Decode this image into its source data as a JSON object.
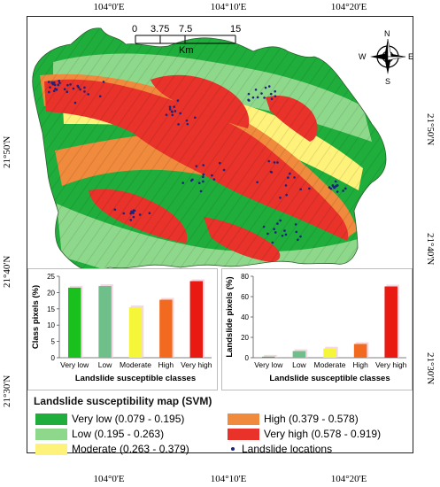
{
  "map": {
    "lon_labels": [
      "104°0'E",
      "104°10'E",
      "104°20'E"
    ],
    "lat_labels": [
      "21°50'N",
      "21°40'N",
      "21°30'N"
    ],
    "scale_bar": {
      "ticks": [
        "0",
        "3.75",
        "7.5",
        "15"
      ],
      "unit": "Km"
    },
    "north_arrow": {
      "n": "N",
      "s": "S",
      "e": "E",
      "w": "W"
    },
    "colors": {
      "very_low": "#1fae3c",
      "low": "#8ed88c",
      "moderate": "#fff27a",
      "high": "#f08a3c",
      "very_high": "#e8322a",
      "landslide": "#1a237e"
    }
  },
  "legend": {
    "title": "Landslide susceptibility map (SVM)",
    "items": [
      {
        "label": "Very low (0.079 - 0.195)",
        "color": "#1fae3c"
      },
      {
        "label": "Low (0.195 - 0.263)",
        "color": "#8ed88c"
      },
      {
        "label": "Moderate (0.263 - 0.379)",
        "color": "#fff27a"
      },
      {
        "label": "High (0.379 - 0.578)",
        "color": "#f08a3c"
      },
      {
        "label": "Very high (0.578 - 0.919)",
        "color": "#e8322a"
      },
      {
        "label": "Landslide locations",
        "color": "#1a237e"
      }
    ]
  },
  "chart_data": [
    {
      "type": "bar",
      "categories": [
        "Very low",
        "Low",
        "Moderate",
        "High",
        "Very high"
      ],
      "values": [
        21.5,
        22.0,
        15.5,
        17.8,
        23.5
      ],
      "colors": [
        "#19c01e",
        "#6ebf8a",
        "#f5f53a",
        "#f26a1f",
        "#e81a12"
      ],
      "title": "",
      "xlabel": "Landslide susceptible classes",
      "ylabel": "Class pixels (%)",
      "ylim": [
        0,
        25
      ],
      "yticks": [
        0,
        5,
        10,
        15,
        20,
        25
      ],
      "grid": false
    },
    {
      "type": "bar",
      "categories": [
        "Very low",
        "Low",
        "Moderate",
        "High",
        "Very high"
      ],
      "values": [
        1,
        6.5,
        9,
        13.5,
        70
      ],
      "colors": [
        "#19c01e",
        "#6ebf8a",
        "#f5f53a",
        "#f26a1f",
        "#e81a12"
      ],
      "title": "",
      "xlabel": "Landslide susceptible classes",
      "ylabel": "Landslide pixels (%)",
      "ylim": [
        0,
        80
      ],
      "yticks": [
        0,
        20,
        40,
        60,
        80
      ],
      "grid": false
    }
  ]
}
